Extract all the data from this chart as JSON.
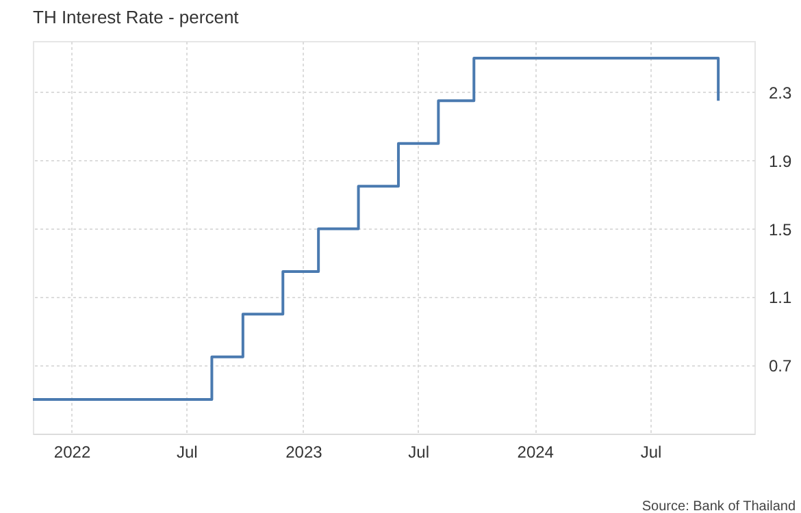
{
  "chart_data": {
    "type": "step",
    "title": "TH Interest Rate - percent",
    "annotations": [
      "Source: Bank of Thailand"
    ],
    "x": [
      "2021-11-01",
      "2022-08-10",
      "2022-09-28",
      "2022-11-30",
      "2023-01-25",
      "2023-03-29",
      "2023-05-31",
      "2023-08-02",
      "2023-09-27",
      "2024-10-16"
    ],
    "series": [
      {
        "color": "#4a7ab0",
        "values": [
          0.5,
          0.75,
          1.0,
          1.25,
          1.5,
          1.75,
          2.0,
          2.25,
          2.5,
          2.25
        ]
      }
    ],
    "xlim": [
      "2021-11-01",
      "2024-12-12"
    ],
    "xticks": [
      {
        "value": "2022-01-01",
        "label": "2022"
      },
      {
        "value": "2022-07-01",
        "label": "Jul"
      },
      {
        "value": "2023-01-01",
        "label": "2023"
      },
      {
        "value": "2023-07-01",
        "label": "Jul"
      },
      {
        "value": "2024-01-01",
        "label": "2024"
      },
      {
        "value": "2024-07-01",
        "label": "Jul"
      }
    ],
    "ylim": [
      0.3,
      2.6
    ],
    "yticks": [
      0.7,
      1.1,
      1.5,
      1.9,
      2.3
    ],
    "grid": true,
    "marker": "none",
    "line_style": "solid"
  }
}
